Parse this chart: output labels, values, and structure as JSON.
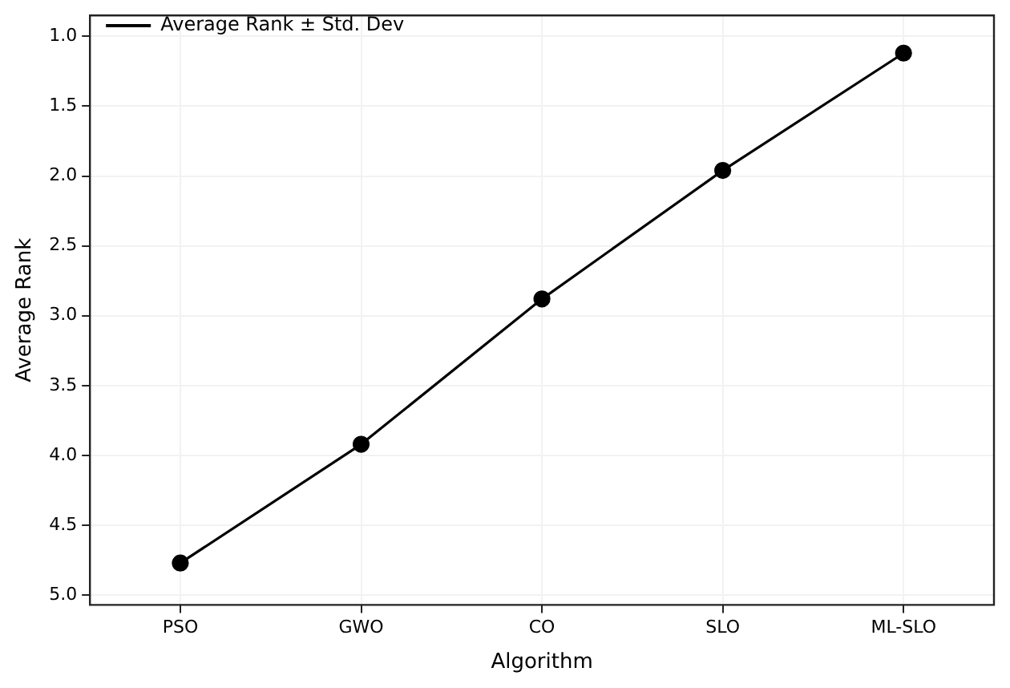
{
  "chart_data": {
    "type": "line",
    "xlabel": "Algorithm",
    "ylabel": "Average Rank",
    "categories": [
      "PSO",
      "GWO",
      "CO",
      "SLO",
      "ML-SLO"
    ],
    "series": [
      {
        "name": "Average Rank ± Std. Dev",
        "color": "#000000",
        "values": [
          4.77,
          3.92,
          2.88,
          1.96,
          1.12
        ]
      }
    ],
    "ylim": [
      5.07,
      0.85
    ],
    "yticks": [
      {
        "value": 1,
        "label": "1.0"
      },
      {
        "value": 1.5,
        "label": "1.5"
      },
      {
        "value": 2,
        "label": "2.0"
      },
      {
        "value": 2.5,
        "label": "2.5"
      },
      {
        "value": 3,
        "label": "3.0"
      },
      {
        "value": 3.5,
        "label": "3.5"
      },
      {
        "value": 4,
        "label": "4.0"
      },
      {
        "value": 4.5,
        "label": "4.5"
      },
      {
        "value": 5,
        "label": "5.0"
      }
    ],
    "grid": true,
    "legend": "top left",
    "marker": "circle",
    "line_style": "solid"
  }
}
